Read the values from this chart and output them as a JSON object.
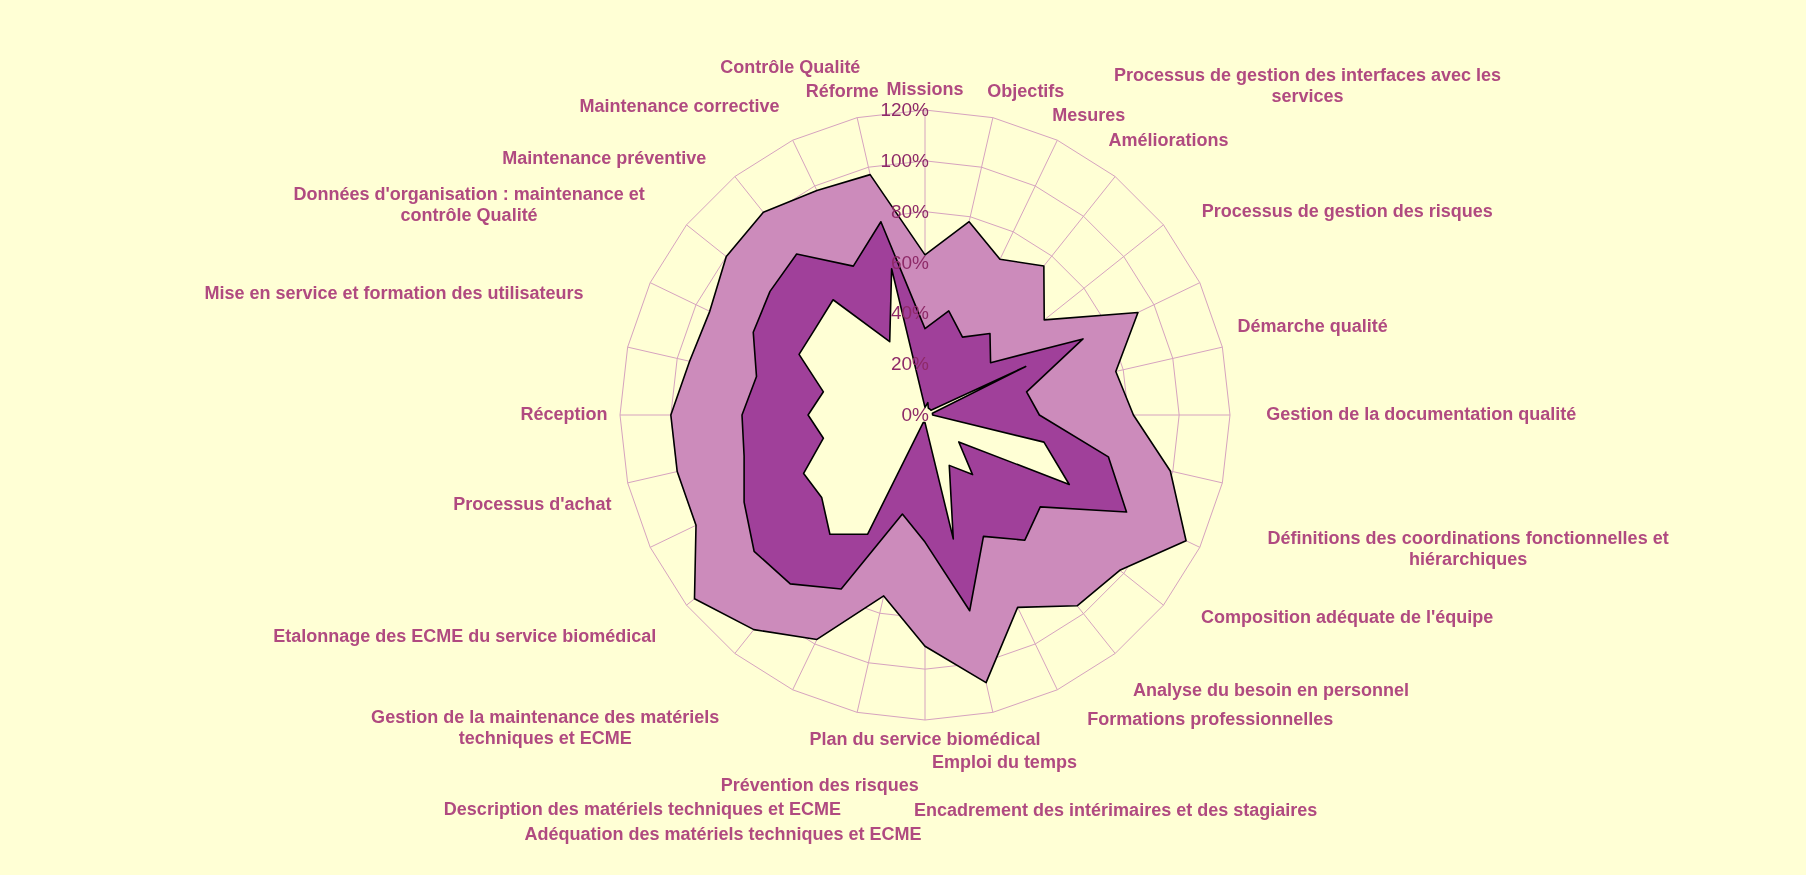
{
  "chart_data": {
    "type": "radar",
    "categories": [
      "Missions",
      "Objectifs",
      "Mesures",
      "Améliorations",
      "Processus de gestion des interfaces avec les services",
      "Processus de gestion des risques",
      "Démarche qualité",
      "Gestion de la documentation qualité",
      "Définitions des coordinations fonctionnelles et hiérarchiques",
      "Composition adéquate de l'équipe",
      "Analyse du besoin en personnel",
      "Formations professionnelles",
      "Encadrement des intérimaires et des stagiaires",
      "Emploi du temps",
      "Plan du service biomédical",
      "Prévention des risques",
      "Adéquation des matériels techniques et ECME",
      "Description des matériels techniques et ECME",
      "Gestion de la maintenance des matériels techniques et ECME",
      "Etalonnage des ECME du service biomédical",
      "Processus d'achat",
      "Réception",
      "Mise en service et formation des utilisateurs",
      "Données d'organisation : maintenance et contrôle Qualité",
      "Maintenance préventive",
      "Maintenance corrective",
      "Contrôle Qualité",
      "Réforme"
    ],
    "series": [
      {
        "color": "#cc8bbb",
        "values": [
          63,
          78,
          68,
          75,
          60,
          93,
          77,
          82,
          99,
          114,
          98,
          96,
          84,
          108,
          91,
          73,
          98,
          108,
          116,
          100,
          100,
          100,
          95,
          94,
          100,
          102,
          98,
          97
        ]
      },
      {
        "color": "#a0409a",
        "values": [
          34,
          42,
          34,
          41,
          33,
          69,
          41,
          45,
          74,
          88,
          58,
          63,
          53,
          79,
          50,
          40,
          76,
          85,
          86,
          79,
          73,
          72,
          68,
          75,
          78,
          81,
          65,
          78
        ]
      },
      {
        "color": "#ffffd5",
        "values": [
          3,
          5,
          3,
          3,
          3,
          44,
          3,
          3,
          48,
          63,
          17,
          30,
          22,
          50,
          3,
          3,
          52,
          60,
          52,
          53,
          41,
          46,
          41,
          55,
          55,
          58,
          32,
          59
        ]
      }
    ],
    "ylim": [
      0,
      120
    ],
    "yticks": [
      {
        "value": 0,
        "label": "0%"
      },
      {
        "value": 20,
        "label": "20%"
      },
      {
        "value": 40,
        "label": "40%"
      },
      {
        "value": 60,
        "label": "60%"
      },
      {
        "value": 80,
        "label": "80%"
      },
      {
        "value": 100,
        "label": "100%"
      },
      {
        "value": 120,
        "label": "120%"
      }
    ],
    "grid": true
  }
}
